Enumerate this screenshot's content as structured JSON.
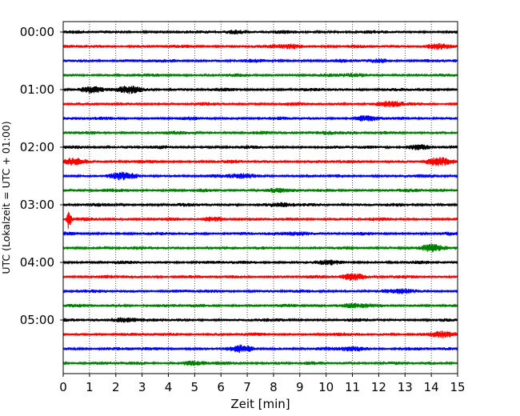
{
  "chart_data": {
    "type": "line",
    "xlabel": "Zeit  [min]",
    "ylabel": "UTC (Lokalzeit = UTC + 01:00)",
    "xlim": [
      0,
      15
    ],
    "x_ticks": [
      "0",
      "1",
      "2",
      "3",
      "4",
      "5",
      "6",
      "7",
      "8",
      "9",
      "10",
      "11",
      "12",
      "13",
      "14",
      "15"
    ],
    "y_tick_labels": [
      "00:00",
      "01:00",
      "02:00",
      "03:00",
      "04:00",
      "05:00"
    ],
    "grid": "vertical dotted lines at each minute",
    "trace_colors": [
      "#000000",
      "#ff0000",
      "#0000ff",
      "#008000"
    ],
    "trace_interval_min": 15,
    "trace_count": 24,
    "series": [
      {
        "start": "00:00",
        "color": "#000000",
        "events": [
          {
            "x": 6.5,
            "amp": 2.0
          }
        ]
      },
      {
        "start": "00:15",
        "color": "#ff0000",
        "events": [
          {
            "x": 8.7,
            "amp": 2.5
          },
          {
            "x": 14.2,
            "amp": 2.5
          }
        ]
      },
      {
        "start": "00:30",
        "color": "#0000ff",
        "events": [
          {
            "x": 12.0,
            "amp": 1.5
          }
        ]
      },
      {
        "start": "00:45",
        "color": "#008000",
        "events": [
          {
            "x": 11.0,
            "amp": 1.5
          }
        ]
      },
      {
        "start": "01:00",
        "color": "#000000",
        "events": [
          {
            "x": 1.0,
            "amp": 3.5
          },
          {
            "x": 2.5,
            "amp": 3.5
          }
        ]
      },
      {
        "start": "01:15",
        "color": "#ff0000",
        "events": [
          {
            "x": 12.5,
            "amp": 2.5
          }
        ]
      },
      {
        "start": "01:30",
        "color": "#0000ff",
        "events": [
          {
            "x": 11.5,
            "amp": 2.0
          }
        ]
      },
      {
        "start": "01:45",
        "color": "#008000",
        "events": [
          {
            "x": 10.0,
            "amp": 2.0
          }
        ]
      },
      {
        "start": "02:00",
        "color": "#000000",
        "events": [
          {
            "x": 13.5,
            "amp": 2.5
          }
        ]
      },
      {
        "start": "02:15",
        "color": "#ff0000",
        "events": [
          {
            "x": 0.5,
            "amp": 4.0
          },
          {
            "x": 14.3,
            "amp": 4.0
          }
        ]
      },
      {
        "start": "02:30",
        "color": "#0000ff",
        "events": [
          {
            "x": 2.2,
            "amp": 4.0
          },
          {
            "x": 6.8,
            "amp": 2.5
          }
        ]
      },
      {
        "start": "02:45",
        "color": "#008000",
        "events": [
          {
            "x": 8.0,
            "amp": 2.0
          }
        ]
      },
      {
        "start": "03:00",
        "color": "#000000",
        "events": [
          {
            "x": 8.3,
            "amp": 1.5
          }
        ]
      },
      {
        "start": "03:15",
        "color": "#ff0000",
        "events": [
          {
            "x": 0.22,
            "amp": 12.0
          },
          {
            "x": 5.8,
            "amp": 2.0
          }
        ]
      },
      {
        "start": "03:30",
        "color": "#0000ff",
        "events": [
          {
            "x": 9.0,
            "amp": 2.5
          }
        ]
      },
      {
        "start": "03:45",
        "color": "#008000",
        "events": [
          {
            "x": 14.0,
            "amp": 3.0
          }
        ]
      },
      {
        "start": "04:00",
        "color": "#000000",
        "events": [
          {
            "x": 10.0,
            "amp": 1.5
          }
        ]
      },
      {
        "start": "04:15",
        "color": "#ff0000",
        "events": [
          {
            "x": 11.0,
            "amp": 4.0
          }
        ]
      },
      {
        "start": "04:30",
        "color": "#0000ff",
        "events": [
          {
            "x": 13.0,
            "amp": 2.0
          }
        ]
      },
      {
        "start": "04:45",
        "color": "#008000",
        "events": [
          {
            "x": 11.0,
            "amp": 2.5
          }
        ]
      },
      {
        "start": "05:00",
        "color": "#000000",
        "events": [
          {
            "x": 2.3,
            "amp": 3.0
          }
        ]
      },
      {
        "start": "05:15",
        "color": "#ff0000",
        "events": [
          {
            "x": 14.5,
            "amp": 3.0
          }
        ]
      },
      {
        "start": "05:30",
        "color": "#0000ff",
        "events": [
          {
            "x": 6.8,
            "amp": 3.0
          },
          {
            "x": 11.0,
            "amp": 2.5
          }
        ]
      },
      {
        "start": "05:45",
        "color": "#008000",
        "events": [
          {
            "x": 5.0,
            "amp": 2.0
          }
        ]
      }
    ]
  }
}
